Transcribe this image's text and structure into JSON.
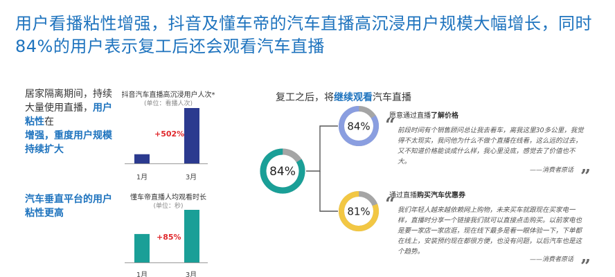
{
  "title": "用户看播粘性增强，抖音及懂车帝的汽车直播高沉浸用户规模大幅增长，同时84%的用户表示复工后还会观看汽车直播",
  "left": {
    "text1_a": "居家隔离期间，持续大量使用直播，",
    "text1_b": "用户粘性",
    "text1_c": "在",
    "text1_d": "增强，重度用户规模持续扩大",
    "text2": "汽车垂直平台的用户粘性更高"
  },
  "resume": {
    "prefix": "复工之后，将",
    "highlight": "继续观看",
    "suffix": "汽车直播"
  },
  "chart_data": [
    {
      "type": "bar",
      "title": "抖音汽车直播高沉浸用户人次*",
      "unit": "(单位：看播人次)",
      "categories": [
        "1月",
        "3月"
      ],
      "values": [
        1,
        6.02
      ],
      "growth_label": "+502%",
      "color": "#2b3a8f"
    },
    {
      "type": "bar",
      "title": "懂车帝直播人均观看时长",
      "unit": "(单位：秒)",
      "categories": [
        "1月",
        "3月"
      ],
      "values": [
        1,
        1.85
      ],
      "growth_label": "+85%",
      "color": "#1a9f97"
    },
    {
      "type": "pie",
      "value_label": "84%",
      "slices": [
        {
          "label": "84%",
          "value": 84,
          "color": "#1a9f97"
        },
        {
          "label": "",
          "value": 16,
          "color": "#a5a5a5"
        }
      ]
    },
    {
      "type": "pie",
      "value_label": "84%",
      "slices": [
        {
          "label": "84%",
          "value": 84,
          "color": "#8a9ee0"
        },
        {
          "label": "",
          "value": 16,
          "color": "#a5a5a5"
        }
      ]
    },
    {
      "type": "pie",
      "value_label": "81%",
      "slices": [
        {
          "label": "81%",
          "value": 81,
          "color": "#f2c744"
        },
        {
          "label": "",
          "value": 19,
          "color": "#a5a5a5"
        }
      ]
    }
  ],
  "reasons": [
    {
      "head_prefix": "愿意通过直播",
      "head_highlight": "了解价格",
      "quote": "前段时间有个销售顾问总让我去看车，离我这里30多公里，我觉得不太现实，我问他为什么不做个直播在线看，这么远的过去，又不知道价格能谈成什么样，我心里没底，感觉去了价值也不大。",
      "sig": "——消费者原话"
    },
    {
      "head_prefix": "通过直播",
      "head_highlight": "购买汽车优惠券",
      "quote": "我们年轻人越来越依赖网上购物，未来买车就跟现在买家电一样，直播时分享一个链接我们就可以直接点击购买。以前家电也是要一家店一家店逛，现在线下最多是看一眼体验一下，下单都在线上，安装预约现在都很方便，也没有问题，以后汽车也是这个趋势。",
      "sig": "——消费者原话"
    }
  ],
  "icons": {
    "quote_open": "“",
    "quote_close": "”"
  }
}
